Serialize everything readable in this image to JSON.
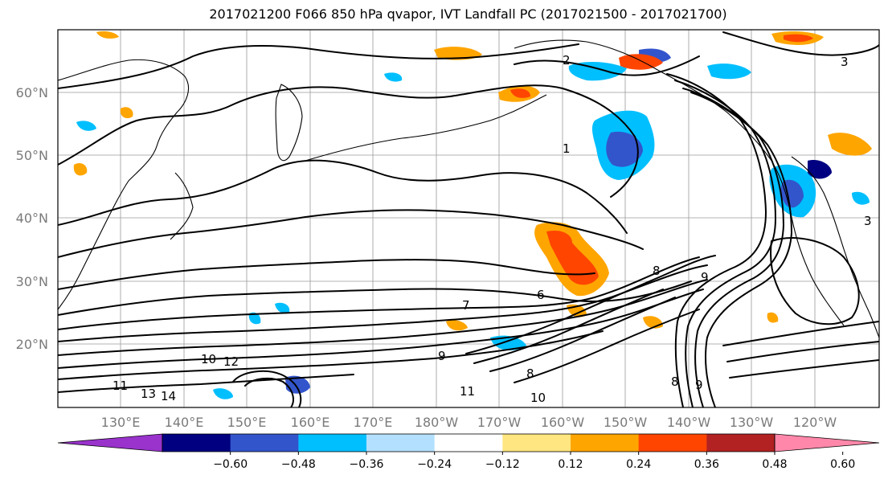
{
  "title": "2017021200 F066 850 hPa qvapor, IVT Landfall PC (2017021500 - 2017021700)",
  "map": {
    "lat_ticks": [
      "60°N",
      "50°N",
      "40°N",
      "30°N",
      "20°N"
    ],
    "lon_ticks": [
      "130°E",
      "140°E",
      "150°E",
      "160°E",
      "170°E",
      "180°W",
      "170°W",
      "160°W",
      "150°W",
      "140°W",
      "130°W",
      "120°W"
    ],
    "contour_labels": [
      "2",
      "1",
      "3",
      "6",
      "7",
      "8",
      "9",
      "9",
      "10",
      "11",
      "12",
      "13",
      "14",
      "11",
      "10",
      "8",
      "9",
      "8",
      "3"
    ],
    "fill_colors": {
      "neg_060": "#9933cc",
      "neg_048": "#000080",
      "neg_036": "#3355cc",
      "neg_024": "#00bfff",
      "neg_012": "#b3e0ff",
      "neutral": "#ffffff",
      "pos_012": "#ffe680",
      "pos_024": "#ffa500",
      "pos_036": "#ff4500",
      "pos_048": "#b22222",
      "pos_060": "#ff88aa"
    }
  },
  "colorbar": {
    "ticks": [
      "−0.60",
      "−0.48",
      "−0.36",
      "−0.24",
      "−0.12",
      "0.12",
      "0.24",
      "0.36",
      "0.48",
      "0.60"
    ],
    "colors": [
      "#9933cc",
      "#000080",
      "#3355cc",
      "#00bfff",
      "#b3e0ff",
      "#ffffff",
      "#ffe680",
      "#ffa500",
      "#ff4500",
      "#b22222",
      "#ff88aa"
    ]
  }
}
